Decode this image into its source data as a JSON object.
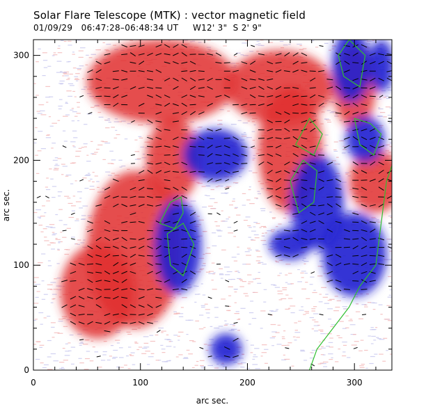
{
  "header": {
    "title": "Solar Flare Telescope (MTK) : vector magnetic field",
    "date": "01/09/29",
    "time_range": "06:47:28–06:48:34 UT",
    "position": "W12' 3\"  S 2' 9\""
  },
  "chart_data": {
    "type": "heatmap",
    "title": "Solar Flare Telescope (MTK) : vector magnetic field",
    "subtitle": "01/09/29  06:47:28–06:48:34 UT     W12' 3\"  S 2' 9\"",
    "xlabel": "arc sec.",
    "ylabel": "arc sec.",
    "xlim": [
      0,
      335
    ],
    "ylim": [
      0,
      315
    ],
    "xticks": [
      0,
      100,
      200,
      300
    ],
    "yticks": [
      0,
      100,
      200,
      300
    ],
    "xtick_labels": [
      "0",
      "100",
      "200",
      "300"
    ],
    "ytick_labels": [
      "0",
      "100",
      "200",
      "300"
    ],
    "colors": {
      "positive_polarity": "#e03030",
      "negative_polarity": "#2020d0",
      "neutral_line": "#30c030",
      "transverse_vectors": "#000000"
    },
    "positive_regions": [
      {
        "cx": 95,
        "cy": 115,
        "rx": 45,
        "ry": 75
      },
      {
        "cx": 130,
        "cy": 200,
        "rx": 25,
        "ry": 40
      },
      {
        "cx": 60,
        "cy": 75,
        "rx": 35,
        "ry": 45
      },
      {
        "cx": 240,
        "cy": 210,
        "rx": 30,
        "ry": 60
      },
      {
        "cx": 230,
        "cy": 270,
        "rx": 50,
        "ry": 35
      },
      {
        "cx": 120,
        "cy": 275,
        "rx": 70,
        "ry": 40
      },
      {
        "cx": 300,
        "cy": 270,
        "rx": 20,
        "ry": 40
      },
      {
        "cx": 320,
        "cy": 180,
        "rx": 25,
        "ry": 30
      }
    ],
    "negative_regions": [
      {
        "cx": 135,
        "cy": 118,
        "rx": 22,
        "ry": 45
      },
      {
        "cx": 170,
        "cy": 205,
        "rx": 30,
        "ry": 25
      },
      {
        "cx": 265,
        "cy": 160,
        "rx": 25,
        "ry": 45
      },
      {
        "cx": 297,
        "cy": 290,
        "rx": 18,
        "ry": 35
      },
      {
        "cx": 325,
        "cy": 290,
        "rx": 12,
        "ry": 25
      },
      {
        "cx": 310,
        "cy": 220,
        "rx": 18,
        "ry": 22
      },
      {
        "cx": 300,
        "cy": 110,
        "rx": 30,
        "ry": 40
      },
      {
        "cx": 180,
        "cy": 20,
        "rx": 15,
        "ry": 15
      },
      {
        "cx": 240,
        "cy": 120,
        "rx": 20,
        "ry": 15
      }
    ],
    "neutral_contours": [
      [
        [
          118,
          140
        ],
        [
          128,
          160
        ],
        [
          138,
          165
        ],
        [
          140,
          150
        ],
        [
          132,
          135
        ],
        [
          118,
          140
        ]
      ],
      [
        [
          125,
          130
        ],
        [
          140,
          140
        ],
        [
          150,
          120
        ],
        [
          140,
          90
        ],
        [
          128,
          100
        ],
        [
          125,
          130
        ]
      ],
      [
        [
          240,
          180
        ],
        [
          252,
          200
        ],
        [
          265,
          190
        ],
        [
          262,
          160
        ],
        [
          248,
          150
        ],
        [
          240,
          180
        ]
      ],
      [
        [
          245,
          215
        ],
        [
          258,
          240
        ],
        [
          270,
          225
        ],
        [
          262,
          205
        ],
        [
          245,
          215
        ]
      ],
      [
        [
          285,
          300
        ],
        [
          295,
          315
        ],
        [
          310,
          300
        ],
        [
          305,
          270
        ],
        [
          290,
          280
        ],
        [
          285,
          300
        ]
      ],
      [
        [
          300,
          240
        ],
        [
          315,
          235
        ],
        [
          325,
          225
        ],
        [
          318,
          205
        ],
        [
          305,
          215
        ],
        [
          300,
          240
        ]
      ],
      [
        [
          340,
          210
        ],
        [
          330,
          180
        ],
        [
          325,
          140
        ],
        [
          320,
          100
        ],
        [
          305,
          80
        ],
        [
          295,
          60
        ],
        [
          280,
          40
        ],
        [
          265,
          20
        ],
        [
          258,
          0
        ]
      ]
    ]
  }
}
